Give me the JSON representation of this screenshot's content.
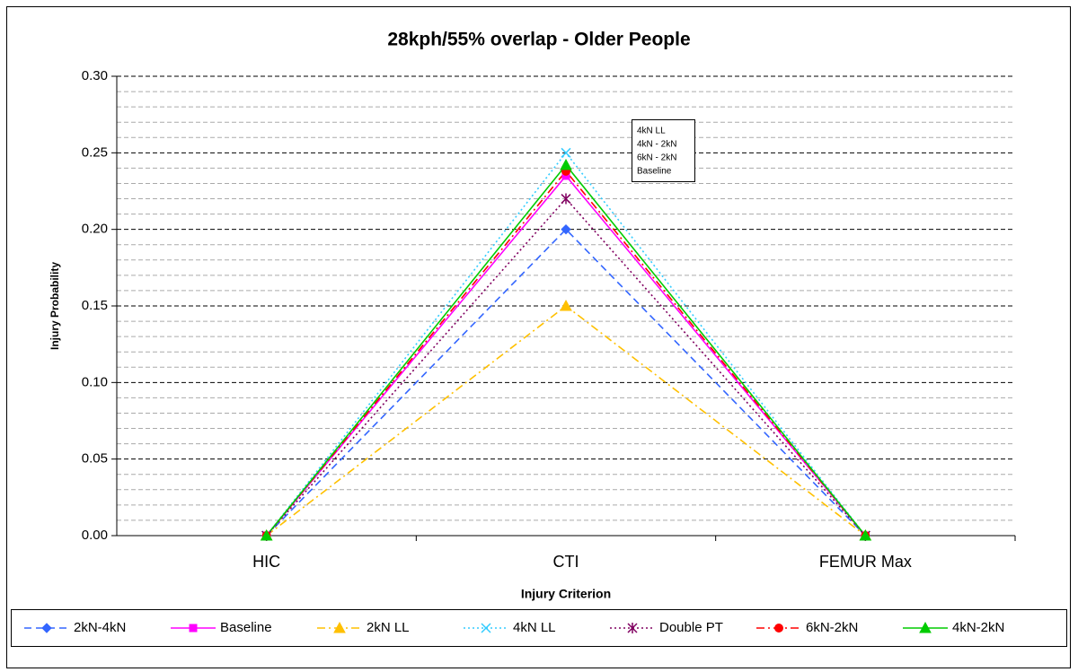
{
  "chart_data": {
    "type": "line",
    "title": "28kph/55% overlap - Older People",
    "x_label": "Injury Criterion",
    "y_label": "Injury Probability",
    "categories": [
      "HIC",
      "CTI",
      "FEMUR Max"
    ],
    "series": [
      {
        "name": "2kN-4kN",
        "color": "#3366ff",
        "dash": "dashed",
        "marker": "diamond",
        "values": [
          0,
          0.2,
          0
        ]
      },
      {
        "name": "Baseline",
        "color": "#ff00ff",
        "dash": "solid",
        "marker": "square",
        "values": [
          0,
          0.235,
          0
        ]
      },
      {
        "name": "2kN LL",
        "color": "#ffc000",
        "dash": "dashdot",
        "marker": "triangle",
        "values": [
          0,
          0.15,
          0
        ]
      },
      {
        "name": "4kN LL",
        "color": "#33ccff",
        "dash": "dotted",
        "marker": "x",
        "values": [
          0,
          0.25,
          0
        ]
      },
      {
        "name": "Double PT",
        "color": "#800060",
        "dash": "dotted",
        "marker": "star",
        "values": [
          0,
          0.22,
          0
        ]
      },
      {
        "name": "6kN-2kN",
        "color": "#ff0000",
        "dash": "dashdot",
        "marker": "circle",
        "values": [
          0,
          0.238,
          0
        ]
      },
      {
        "name": "4kN-2kN",
        "color": "#00cc00",
        "dash": "solid",
        "marker": "triangle",
        "values": [
          0,
          0.242,
          0
        ]
      }
    ],
    "annotation_lines": [
      "4kN LL",
      "4kN - 2kN",
      "6kN - 2kN",
      "Baseline"
    ],
    "ylim": [
      0,
      0.3
    ],
    "yticks": [
      {
        "value": 0,
        "label": "0.00"
      },
      {
        "value": 0.05,
        "label": "0.05"
      },
      {
        "value": 0.1,
        "label": "0.10"
      },
      {
        "value": 0.15,
        "label": "0.15"
      },
      {
        "value": 0.2,
        "label": "0.20"
      },
      {
        "value": 0.25,
        "label": "0.25"
      },
      {
        "value": 0.3,
        "label": "0.30"
      }
    ],
    "minor_yticks": [
      0.01,
      0.02,
      0.03,
      0.04,
      0.06,
      0.07,
      0.08,
      0.09,
      0.11,
      0.12,
      0.13,
      0.14,
      0.16,
      0.17,
      0.18,
      0.19,
      0.21,
      0.22,
      0.23,
      0.24,
      0.26,
      0.27,
      0.28,
      0.29
    ],
    "grid": true,
    "legend": "bottom"
  }
}
